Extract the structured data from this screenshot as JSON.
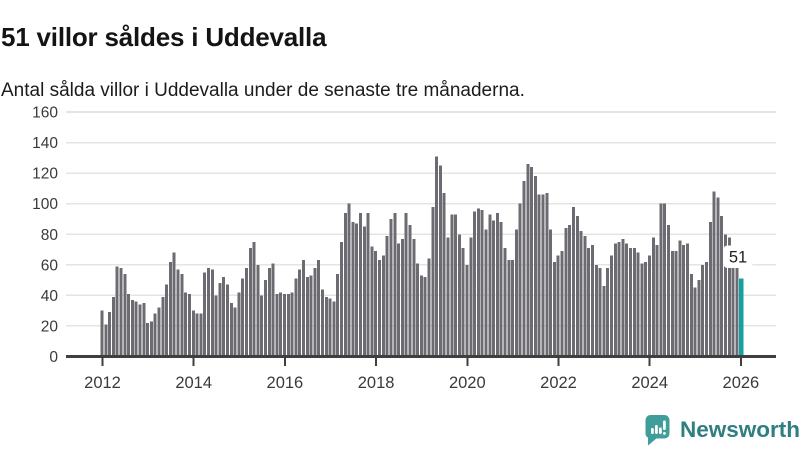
{
  "header": {
    "title": "51 villor såldes i Uddevalla",
    "subtitle": "Antal sålda villor i Uddevalla under de senaste tre månaderna."
  },
  "branding": {
    "name": "Newsworthy",
    "logo_bubble_color": "#3f9e9a",
    "logo_text_color": "#2f7e81"
  },
  "chart_data": {
    "type": "bar",
    "title": "51 villor såldes i Uddevalla",
    "xlabel": "",
    "ylabel": "",
    "ylim": [
      0,
      160
    ],
    "grid": true,
    "bar_color": "#6c6b72",
    "grid_color": "#e4e4e4",
    "axis_color": "#3f3f3f",
    "tick_label_color": "#3a3a3a",
    "y_ticks": [
      0,
      20,
      40,
      60,
      80,
      100,
      120,
      140,
      160
    ],
    "x_ticks": [
      2012,
      2014,
      2016,
      2018,
      2020,
      2022,
      2024,
      2026
    ],
    "series": [
      {
        "year": 2012,
        "monthly": [
          30,
          21,
          29,
          39,
          59,
          58,
          54,
          41,
          37,
          36,
          34,
          35
        ]
      },
      {
        "year": 2013,
        "monthly": [
          22,
          23,
          28,
          32,
          39,
          47,
          62,
          68,
          57,
          54,
          42,
          41
        ]
      },
      {
        "year": 2014,
        "monthly": [
          30,
          28,
          28,
          55,
          58,
          57,
          40,
          48,
          52,
          47,
          35,
          32
        ]
      },
      {
        "year": 2015,
        "monthly": [
          42,
          51,
          58,
          71,
          75,
          60,
          40,
          50,
          58,
          61,
          41,
          42
        ]
      },
      {
        "year": 2016,
        "monthly": [
          41,
          41,
          42,
          51,
          57,
          63,
          52,
          53,
          58,
          63,
          44,
          39
        ]
      },
      {
        "year": 2017,
        "monthly": [
          38,
          36,
          54,
          75,
          94,
          100,
          88,
          87,
          94,
          85,
          94,
          72
        ]
      },
      {
        "year": 2018,
        "monthly": [
          69,
          63,
          66,
          79,
          90,
          94,
          74,
          77,
          94,
          86,
          77,
          61
        ]
      },
      {
        "year": 2019,
        "monthly": [
          53,
          52,
          64,
          98,
          131,
          125,
          107,
          78,
          93,
          93,
          80,
          71
        ]
      },
      {
        "year": 2020,
        "monthly": [
          60,
          78,
          95,
          97,
          96,
          83,
          93,
          89,
          94,
          88,
          71,
          63
        ]
      },
      {
        "year": 2021,
        "monthly": [
          63,
          83,
          100,
          115,
          126,
          124,
          118,
          106,
          106,
          107,
          83,
          62
        ]
      },
      {
        "year": 2022,
        "monthly": [
          66,
          69,
          84,
          86,
          98,
          92,
          82,
          79,
          71,
          73,
          60,
          58
        ]
      },
      {
        "year": 2023,
        "monthly": [
          46,
          58,
          66,
          74,
          75,
          77,
          74,
          71,
          71,
          68,
          61,
          62
        ]
      },
      {
        "year": 2024,
        "monthly": [
          66,
          78,
          73,
          100,
          100,
          86,
          69,
          69,
          76,
          73,
          74,
          54
        ]
      },
      {
        "year": 2025,
        "monthly": [
          45,
          50,
          60,
          62,
          88,
          108,
          104,
          92,
          80,
          78,
          72,
          62
        ]
      }
    ],
    "highlight_bar": {
      "value": 51,
      "label": "51",
      "color": "#12a19e",
      "label_text_color": "#1f1f1f",
      "label_bg_color": "#ffffff"
    }
  }
}
